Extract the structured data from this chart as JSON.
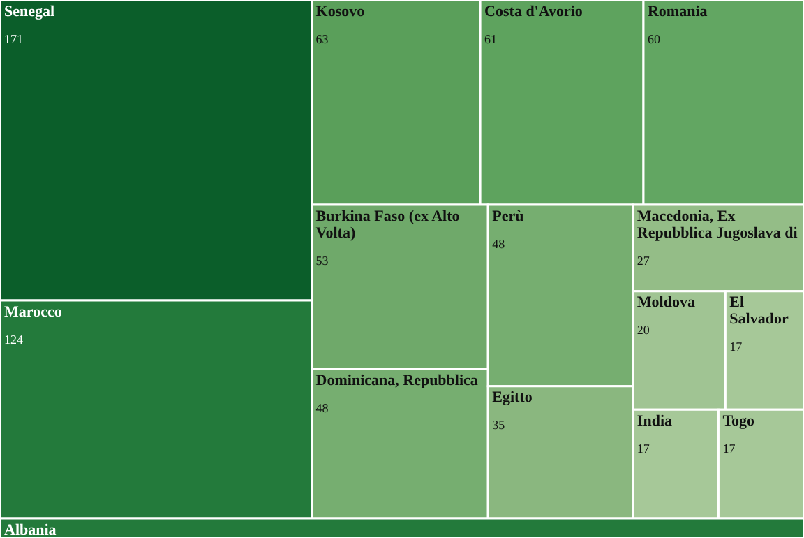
{
  "chart_data": {
    "type": "other",
    "data_labels": true,
    "categories": [
      "Senegal",
      "Marocco",
      "Kosovo",
      "Costa d'Avorio",
      "Romania",
      "Burkina Faso (ex Alto Volta)",
      "Dominicana, Repubblica",
      "Perù",
      "Egitto",
      "Macedonia, Ex Repubblica Jugoslava di",
      "Moldova",
      "El Salvador",
      "India",
      "Togo",
      "Albania"
    ],
    "values": [
      171,
      124,
      63,
      61,
      60,
      53,
      48,
      48,
      35,
      27,
      20,
      17,
      17,
      17,
      null
    ],
    "colors": [
      "#0b5e2a",
      "#237a3b",
      "#5a9f5a",
      "#5ea35e",
      "#62a662",
      "#6fa96a",
      "#76ae70",
      "#76ae70",
      "#8ab77f",
      "#94bd87",
      "#a0c493",
      "#a6c898",
      "#a6c898",
      "#a6c898",
      "#237a3b"
    ]
  }
}
